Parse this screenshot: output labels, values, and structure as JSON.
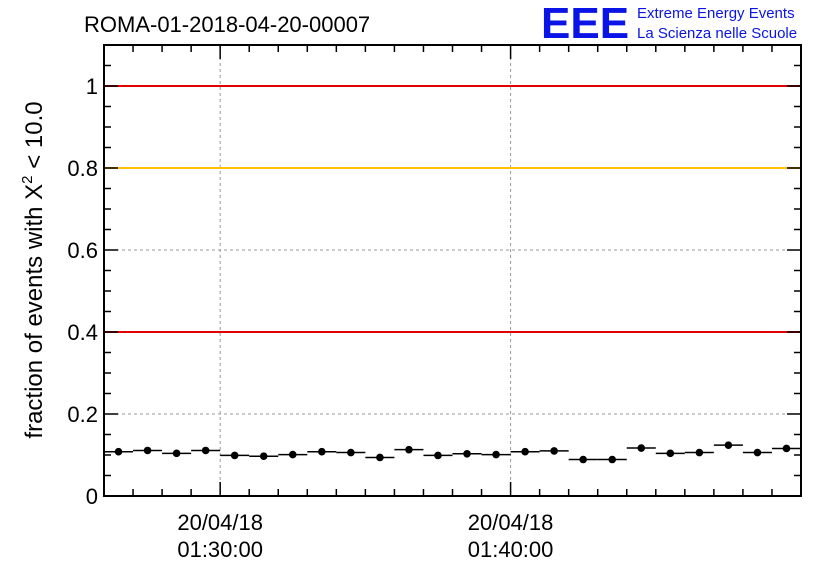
{
  "chart_data": {
    "type": "scatter",
    "title": "ROMA-01-2018-04-20-00007",
    "ylabel_prefix": "fraction of events with ",
    "ylabel_symbol": "X",
    "ylabel_sup": "2",
    "ylabel_suffix": " < 10.0",
    "xlabel": "",
    "ylim": [
      0,
      1.1
    ],
    "x_unit": "minutes",
    "xlim": [
      "01:26:00",
      "01:50:00"
    ],
    "yticks": [
      {
        "value": 0,
        "label": "0"
      },
      {
        "value": 0.2,
        "label": "0.2"
      },
      {
        "value": 0.4,
        "label": "0.4"
      },
      {
        "value": 0.6,
        "label": "0.6"
      },
      {
        "value": 0.8,
        "label": "0.8"
      },
      {
        "value": 1.0,
        "label": "1"
      }
    ],
    "xticks": [
      {
        "time": "01:30:00",
        "date_label": "20/04/18",
        "time_label": "01:30:00"
      },
      {
        "time": "01:40:00",
        "date_label": "20/04/18",
        "time_label": "01:40:00"
      }
    ],
    "grid": true,
    "reference_lines": [
      {
        "y": 1.0,
        "color": "#e00000"
      },
      {
        "y": 0.8,
        "color": "#ffc000"
      },
      {
        "y": 0.4,
        "color": "#e00000"
      }
    ],
    "series": [
      {
        "color": "#000000",
        "bin_width_minutes": 1,
        "points": [
          {
            "x": "01:26:00",
            "y": 0.108
          },
          {
            "x": "01:27:00",
            "y": 0.111
          },
          {
            "x": "01:28:00",
            "y": 0.104
          },
          {
            "x": "01:29:00",
            "y": 0.111
          },
          {
            "x": "01:30:00",
            "y": 0.099
          },
          {
            "x": "01:31:00",
            "y": 0.097
          },
          {
            "x": "01:32:00",
            "y": 0.101
          },
          {
            "x": "01:33:00",
            "y": 0.108
          },
          {
            "x": "01:34:00",
            "y": 0.106
          },
          {
            "x": "01:35:00",
            "y": 0.094
          },
          {
            "x": "01:36:00",
            "y": 0.113
          },
          {
            "x": "01:37:00",
            "y": 0.099
          },
          {
            "x": "01:38:00",
            "y": 0.103
          },
          {
            "x": "01:39:00",
            "y": 0.101
          },
          {
            "x": "01:40:00",
            "y": 0.108
          },
          {
            "x": "01:41:00",
            "y": 0.11
          },
          {
            "x": "01:42:00",
            "y": 0.089
          },
          {
            "x": "01:43:00",
            "y": 0.089
          },
          {
            "x": "01:44:00",
            "y": 0.117
          },
          {
            "x": "01:45:00",
            "y": 0.104
          },
          {
            "x": "01:46:00",
            "y": 0.106
          },
          {
            "x": "01:47:00",
            "y": 0.124
          },
          {
            "x": "01:48:00",
            "y": 0.106
          },
          {
            "x": "01:49:00",
            "y": 0.116
          }
        ]
      }
    ]
  },
  "logo": {
    "letters": "EEE",
    "line1": "Extreme Energy Events",
    "line2": "La Scienza nelle Scuole",
    "color": "#0a14e6"
  }
}
